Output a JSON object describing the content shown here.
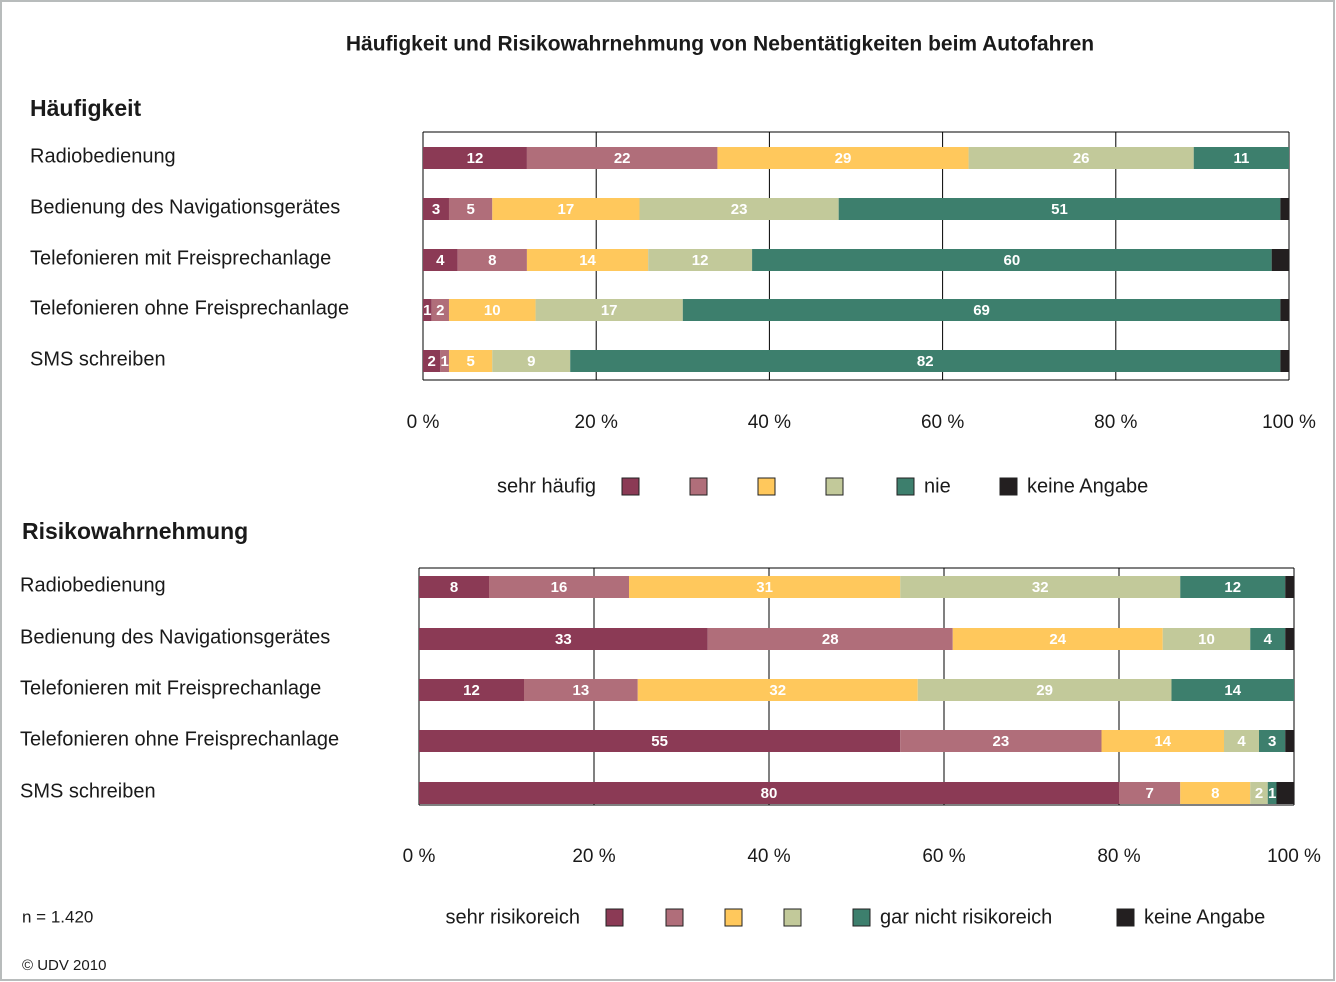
{
  "title": "Häufigkeit und Risikowahrnehmung von Nebentätigkeiten beim Autofahren",
  "note": "n = 1.420",
  "copyright": "© UDV 2010",
  "chart_data": [
    {
      "type": "stacked-bar-horizontal",
      "subtitle": "Häufigkeit",
      "categories": [
        "Radiobedienung",
        "Bedienung des Navigationsgerätes",
        "Telefonieren mit Freisprechanlage",
        "Telefonieren ohne Freisprechanlage",
        "SMS schreiben"
      ],
      "series": [
        {
          "name": "sehr häufig",
          "color": "#8b3a55",
          "values": [
            12,
            3,
            4,
            1,
            2
          ]
        },
        {
          "name": null,
          "color": "#b06e7a",
          "values": [
            22,
            5,
            8,
            2,
            1
          ]
        },
        {
          "name": null,
          "color": "#ffc85c",
          "values": [
            29,
            17,
            14,
            10,
            5
          ]
        },
        {
          "name": null,
          "color": "#c2c99a",
          "values": [
            26,
            23,
            12,
            17,
            9
          ]
        },
        {
          "name": "nie",
          "color": "#3d7f6d",
          "values": [
            11,
            51,
            60,
            69,
            82
          ]
        },
        {
          "name": "keine Angabe",
          "color": "#231f20",
          "values": [
            0,
            1,
            2,
            1,
            1
          ],
          "labels": false
        }
      ],
      "xlim": [
        0,
        100
      ],
      "xticks": [
        {
          "value": 0,
          "label": "0 %"
        },
        {
          "value": 20,
          "label": "20 %"
        },
        {
          "value": 40,
          "label": "40 %"
        },
        {
          "value": 60,
          "label": "60 %"
        },
        {
          "value": 80,
          "label": "80 %"
        },
        {
          "value": 100,
          "label": "100 %"
        }
      ],
      "grid": true,
      "legend": "bottom"
    },
    {
      "type": "stacked-bar-horizontal",
      "subtitle": "Risikowahrnehmung",
      "categories": [
        "Radiobedienung",
        "Bedienung des Navigationsgerätes",
        "Telefonieren mit Freisprechanlage",
        "Telefonieren ohne Freisprechanlage",
        "SMS schreiben"
      ],
      "series": [
        {
          "name": "sehr risikoreich",
          "color": "#8b3a55",
          "values": [
            8,
            33,
            12,
            55,
            80
          ]
        },
        {
          "name": null,
          "color": "#b06e7a",
          "values": [
            16,
            28,
            13,
            23,
            7
          ]
        },
        {
          "name": null,
          "color": "#ffc85c",
          "values": [
            31,
            24,
            32,
            14,
            8
          ]
        },
        {
          "name": null,
          "color": "#c2c99a",
          "values": [
            32,
            10,
            29,
            4,
            2
          ]
        },
        {
          "name": "gar nicht risikoreich",
          "color": "#3d7f6d",
          "values": [
            12,
            4,
            14,
            3,
            1
          ]
        },
        {
          "name": "keine Angabe",
          "color": "#231f20",
          "values": [
            1,
            1,
            0,
            1,
            2
          ],
          "labels": false
        }
      ],
      "xlim": [
        0,
        100
      ],
      "xticks": [
        {
          "value": 0,
          "label": "0 %"
        },
        {
          "value": 20,
          "label": "20 %"
        },
        {
          "value": 40,
          "label": "40 %"
        },
        {
          "value": 60,
          "label": "60 %"
        },
        {
          "value": 80,
          "label": "80 %"
        },
        {
          "value": 100,
          "label": "100 %"
        }
      ],
      "grid": true,
      "legend": "bottom"
    }
  ]
}
